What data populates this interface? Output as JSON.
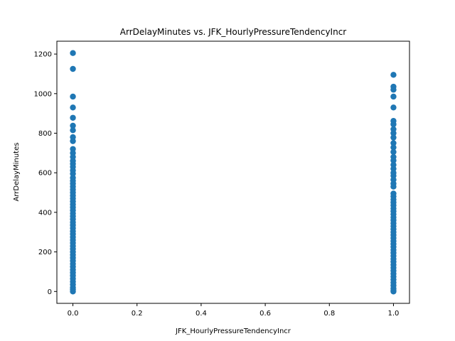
{
  "chart_data": {
    "type": "scatter",
    "title": "ArrDelayMinutes vs. JFK_HourlyPressureTendencyIncr",
    "xlabel": "JFK_HourlyPressureTendencyIncr",
    "ylabel": "ArrDelayMinutes",
    "xlim": [
      -0.05,
      1.05
    ],
    "ylim": [
      -60,
      1265
    ],
    "xticks": [
      "0.0",
      "0.2",
      "0.4",
      "0.6",
      "0.8",
      "1.0"
    ],
    "yticks": [
      "0",
      "200",
      "400",
      "600",
      "800",
      "1000",
      "1200"
    ],
    "grid": false,
    "marker_color": "#1f77b4",
    "series": [
      {
        "points": [
          [
            0,
            1205
          ],
          [
            0,
            1125
          ],
          [
            0,
            985
          ],
          [
            0,
            930
          ],
          [
            0,
            878
          ],
          [
            0,
            838
          ],
          [
            0,
            815
          ],
          [
            0,
            780
          ],
          [
            0,
            760
          ],
          [
            0,
            720
          ],
          [
            0,
            700
          ],
          [
            0,
            680
          ],
          [
            0,
            660
          ],
          [
            0,
            645
          ],
          [
            0,
            630
          ],
          [
            0,
            612
          ],
          [
            0,
            595
          ],
          [
            0,
            575
          ],
          [
            0,
            560
          ],
          [
            0,
            545
          ],
          [
            0,
            530
          ],
          [
            0,
            515
          ],
          [
            0,
            500
          ],
          [
            0,
            485
          ],
          [
            0,
            470
          ],
          [
            0,
            455
          ],
          [
            0,
            440
          ],
          [
            0,
            425
          ],
          [
            0,
            410
          ],
          [
            0,
            395
          ],
          [
            0,
            380
          ],
          [
            0,
            365
          ],
          [
            0,
            350
          ],
          [
            0,
            335
          ],
          [
            0,
            320
          ],
          [
            0,
            305
          ],
          [
            0,
            290
          ],
          [
            0,
            275
          ],
          [
            0,
            260
          ],
          [
            0,
            245
          ],
          [
            0,
            230
          ],
          [
            0,
            215
          ],
          [
            0,
            200
          ],
          [
            0,
            185
          ],
          [
            0,
            170
          ],
          [
            0,
            155
          ],
          [
            0,
            140
          ],
          [
            0,
            125
          ],
          [
            0,
            110
          ],
          [
            0,
            95
          ],
          [
            0,
            80
          ],
          [
            0,
            65
          ],
          [
            0,
            50
          ],
          [
            0,
            35
          ],
          [
            0,
            20
          ],
          [
            0,
            10
          ],
          [
            0,
            0
          ],
          [
            1,
            1095
          ],
          [
            1,
            1035
          ],
          [
            1,
            1020
          ],
          [
            1,
            985
          ],
          [
            1,
            930
          ],
          [
            1,
            862
          ],
          [
            1,
            845
          ],
          [
            1,
            820
          ],
          [
            1,
            800
          ],
          [
            1,
            778
          ],
          [
            1,
            750
          ],
          [
            1,
            728
          ],
          [
            1,
            705
          ],
          [
            1,
            680
          ],
          [
            1,
            662
          ],
          [
            1,
            640
          ],
          [
            1,
            620
          ],
          [
            1,
            600
          ],
          [
            1,
            585
          ],
          [
            1,
            565
          ],
          [
            1,
            545
          ],
          [
            1,
            530
          ],
          [
            1,
            495
          ],
          [
            1,
            480
          ],
          [
            1,
            465
          ],
          [
            1,
            450
          ],
          [
            1,
            435
          ],
          [
            1,
            420
          ],
          [
            1,
            405
          ],
          [
            1,
            390
          ],
          [
            1,
            375
          ],
          [
            1,
            360
          ],
          [
            1,
            345
          ],
          [
            1,
            330
          ],
          [
            1,
            315
          ],
          [
            1,
            300
          ],
          [
            1,
            285
          ],
          [
            1,
            270
          ],
          [
            1,
            255
          ],
          [
            1,
            240
          ],
          [
            1,
            225
          ],
          [
            1,
            210
          ],
          [
            1,
            195
          ],
          [
            1,
            180
          ],
          [
            1,
            165
          ],
          [
            1,
            150
          ],
          [
            1,
            135
          ],
          [
            1,
            120
          ],
          [
            1,
            105
          ],
          [
            1,
            90
          ],
          [
            1,
            75
          ],
          [
            1,
            60
          ],
          [
            1,
            45
          ],
          [
            1,
            30
          ],
          [
            1,
            15
          ],
          [
            1,
            5
          ],
          [
            1,
            0
          ]
        ]
      }
    ]
  }
}
